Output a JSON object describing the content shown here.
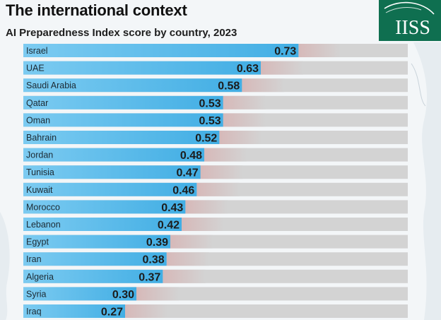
{
  "header": {
    "title": "The international context",
    "subtitle": "AI Preparedness Index score by country, 2023",
    "logo_text": "IISS"
  },
  "colors": {
    "bar": "#4db5e8",
    "bar_light": "#8dd2f3",
    "track": "#d3d3d3",
    "logo_bg": "#0f6f50",
    "logo_text": "#ffffff"
  },
  "chart_data": {
    "type": "bar",
    "orientation": "horizontal",
    "categories": [
      "Israel",
      "UAE",
      "Saudi Arabia",
      "Qatar",
      "Oman",
      "Bahrain",
      "Jordan",
      "Tunisia",
      "Kuwait",
      "Morocco",
      "Lebanon",
      "Egypt",
      "Iran",
      "Algeria",
      "Syria",
      "Iraq"
    ],
    "values": [
      0.73,
      0.63,
      0.58,
      0.53,
      0.53,
      0.52,
      0.48,
      0.47,
      0.46,
      0.43,
      0.42,
      0.39,
      0.38,
      0.37,
      0.3,
      0.27
    ],
    "value_labels": [
      "0.73",
      "0.63",
      "0.58",
      "0.53",
      "0.53",
      "0.52",
      "0.48",
      "0.47",
      "0.46",
      "0.43",
      "0.42",
      "0.39",
      "0.38",
      "0.37",
      "0.30",
      "0.27"
    ],
    "title": "AI Preparedness Index score by country, 2023",
    "xlim": [
      0,
      1.02
    ],
    "grid": false,
    "legend": "none"
  }
}
